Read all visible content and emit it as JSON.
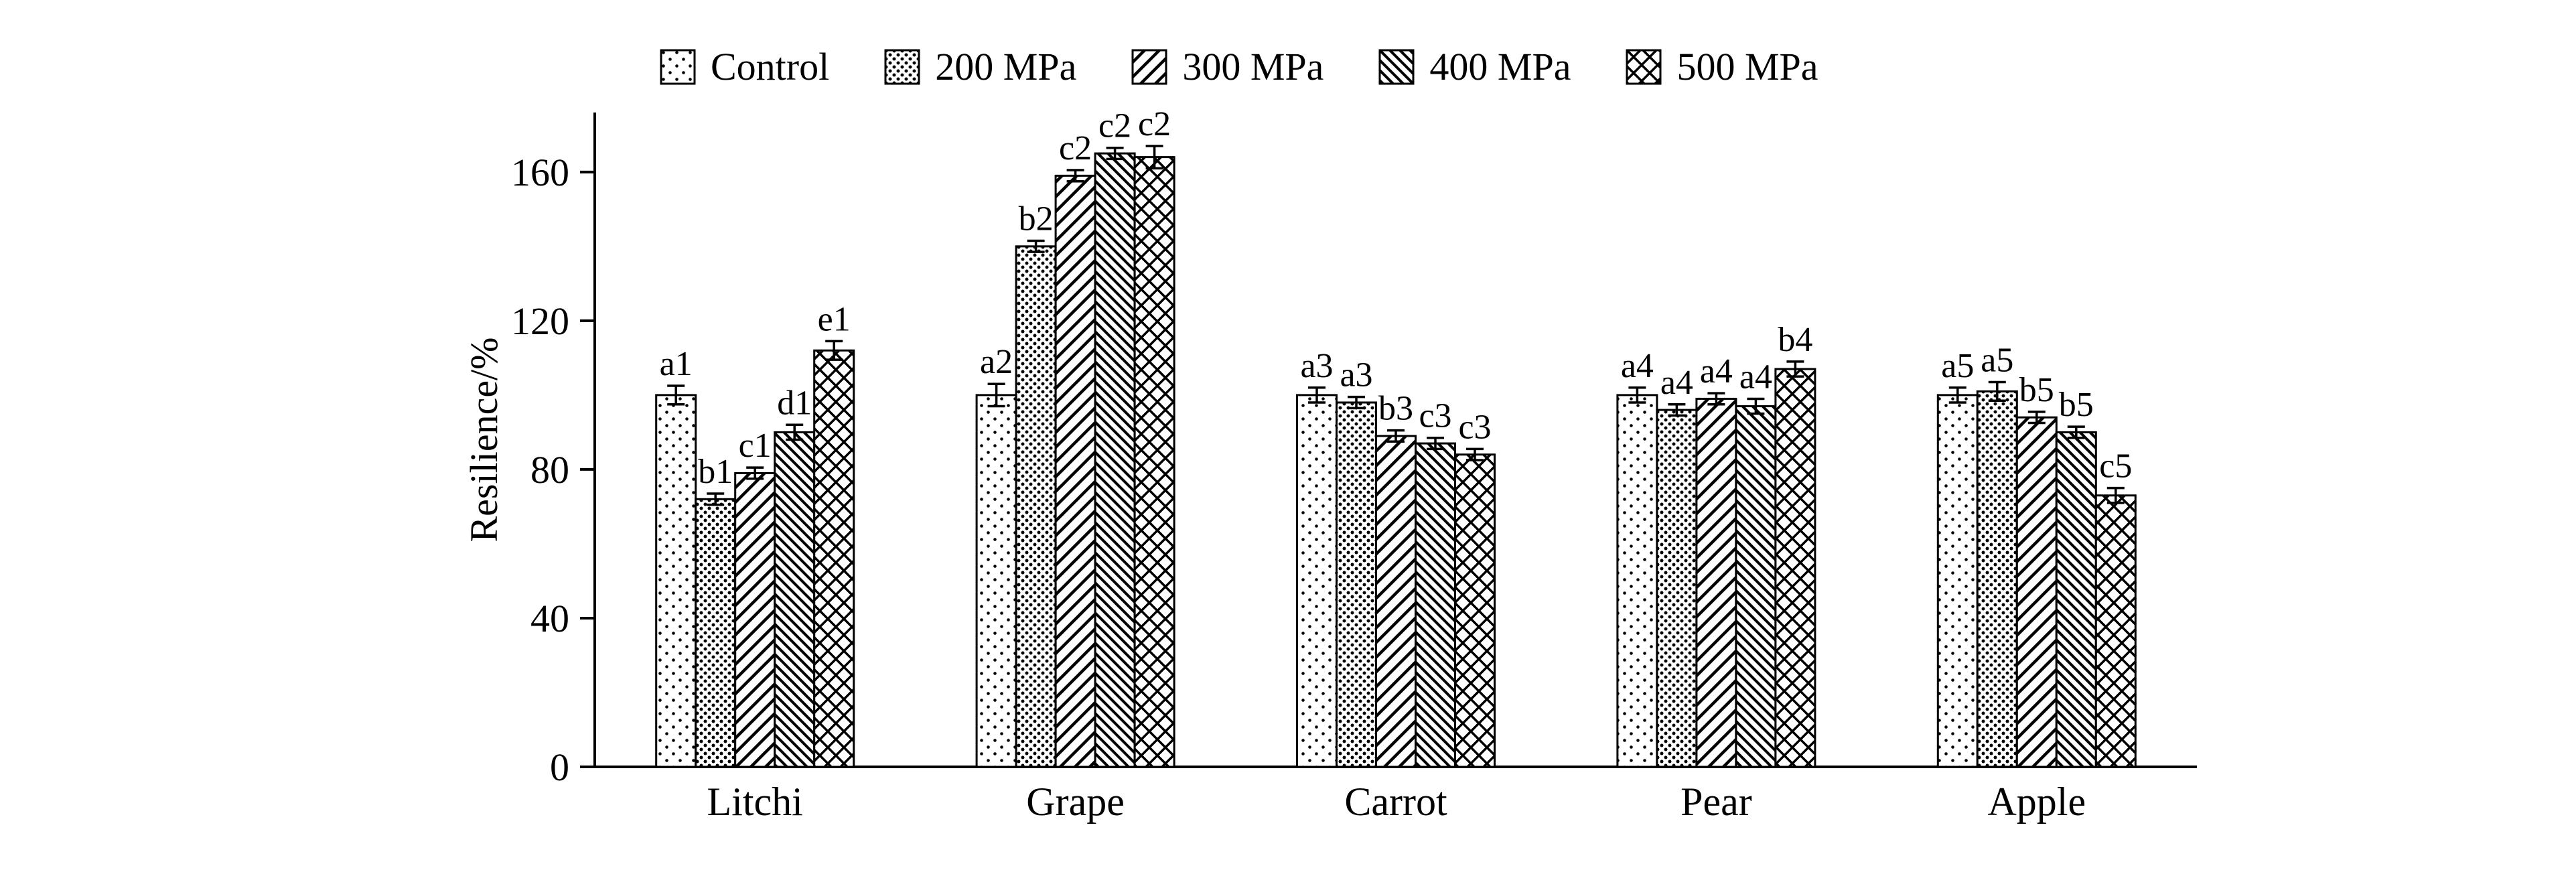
{
  "figure": {
    "background": "#ffffff",
    "axis_color": "#000000",
    "bar_fill_base": "#ffffff",
    "pattern_color": "#000000"
  },
  "chart_data": {
    "type": "bar",
    "title": "",
    "xlabel": "",
    "ylabel": "Resilience/%",
    "ylim": [
      0,
      176
    ],
    "yticks": [
      0,
      40,
      80,
      120,
      160
    ],
    "grid": false,
    "legend_position": "top",
    "categories": [
      "Litchi",
      "Grape",
      "Carrot",
      "Pear",
      "Apple"
    ],
    "series": [
      {
        "name": "Control",
        "pattern": "sparse-dots",
        "values": [
          100,
          100,
          100,
          100,
          100
        ],
        "errors": [
          2.5,
          3,
          2,
          2,
          2
        ],
        "sig_labels": [
          "a1",
          "a2",
          "a3",
          "a4",
          "a5"
        ]
      },
      {
        "name": "200 MPa",
        "pattern": "dense-dots",
        "values": [
          72,
          140,
          98,
          96,
          101
        ],
        "errors": [
          1.5,
          1.5,
          1.5,
          1.5,
          2.5
        ],
        "sig_labels": [
          "b1",
          "b2",
          "a3",
          "a4",
          "a5"
        ]
      },
      {
        "name": "300 MPa",
        "pattern": "diagonal-forward",
        "values": [
          79,
          159,
          89,
          99,
          94
        ],
        "errors": [
          1.5,
          1.5,
          1.5,
          1.5,
          1.5
        ],
        "sig_labels": [
          "c1",
          "c2",
          "b3",
          "a4",
          "b5"
        ]
      },
      {
        "name": "400 MPa",
        "pattern": "diagonal-back",
        "values": [
          90,
          165,
          87,
          97,
          90
        ],
        "errors": [
          2,
          1.5,
          1.5,
          2,
          1.5
        ],
        "sig_labels": [
          "d1",
          "c2",
          "c3",
          "a4",
          "b5"
        ]
      },
      {
        "name": "500 MPa",
        "pattern": "crosshatch",
        "values": [
          112,
          164,
          84,
          107,
          73
        ],
        "errors": [
          2.5,
          3,
          1.5,
          2,
          2
        ],
        "sig_labels": [
          "e1",
          "c2",
          "c3",
          "b4",
          "c5"
        ]
      }
    ]
  }
}
